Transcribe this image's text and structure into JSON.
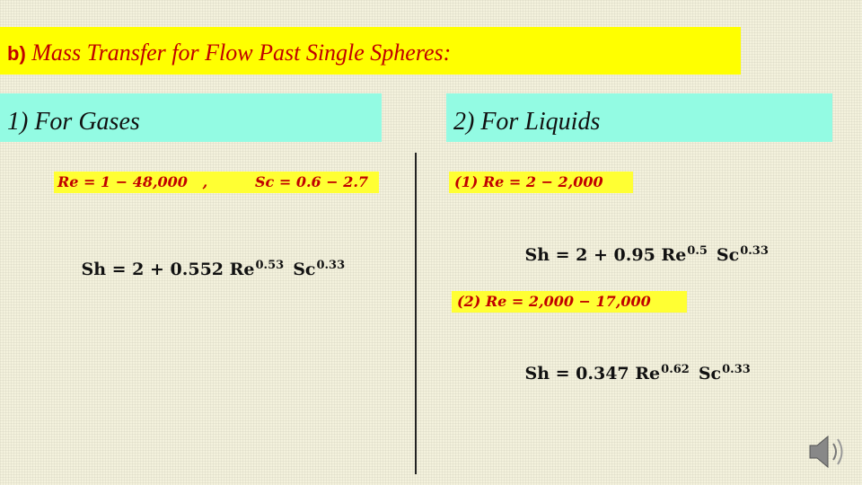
{
  "title": {
    "label": "b)",
    "text": "Mass Transfer for Flow Past Single Spheres:"
  },
  "gases": {
    "heading": "1) For Gases",
    "ranges": [
      "Re = 1 − 48,000   ,",
      "Sc = 0.6 − 2.7"
    ],
    "equation": [
      {
        "base": "Sh = 2 + 0.552 Re",
        "exp": "0.53"
      },
      {
        "base": "Sc",
        "exp": "0.33"
      }
    ]
  },
  "liquids": {
    "heading": "2) For Liquids",
    "cases": [
      {
        "range": "(1) Re = 2 − 2,000",
        "equation": [
          {
            "base": "Sh = 2 + 0.95 Re",
            "exp": "0.5"
          },
          {
            "base": "Sc",
            "exp": "0.33"
          }
        ]
      },
      {
        "range": "(2) Re = 2,000 − 17,000",
        "equation": [
          {
            "base": "Sh = 0.347 Re",
            "exp": "0.62"
          },
          {
            "base": "Sc",
            "exp": "0.33"
          }
        ]
      }
    ]
  }
}
